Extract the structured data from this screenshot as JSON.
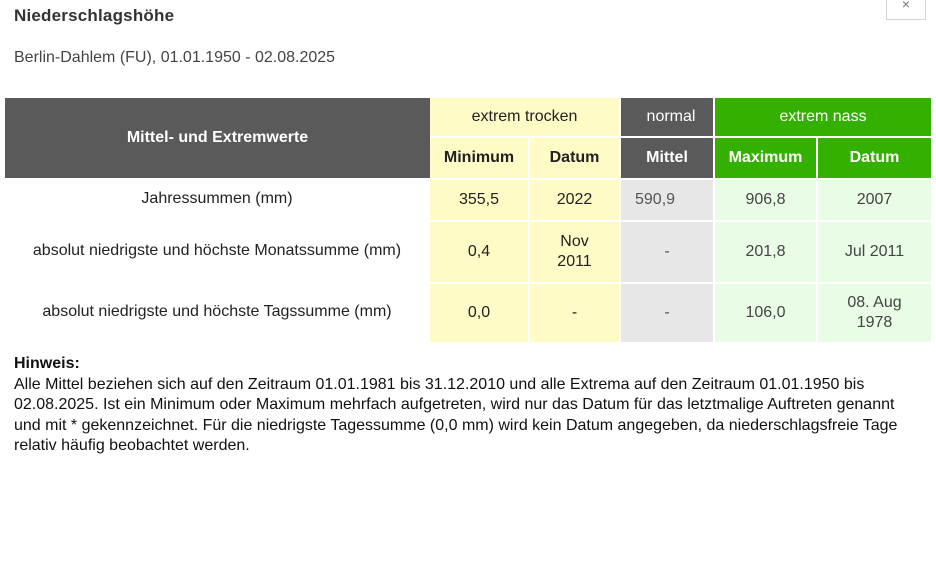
{
  "title": "Niederschlagshöhe",
  "subtitle": "Berlin-Dahlem (FU), 01.01.1950 - 02.08.2025",
  "close_glyph": "×",
  "table": {
    "corner_header": "Mittel- und Extremwerte",
    "groups": {
      "dry": "extrem trocken",
      "normal": "normal",
      "wet": "extrem nass"
    },
    "subheaders": {
      "dry_value": "Minimum",
      "dry_date": "Datum",
      "normal_value": "Mittel",
      "wet_value": "Maximum",
      "wet_date": "Datum"
    },
    "rows": [
      {
        "label": "Jahressummen (mm)",
        "min": "355,5",
        "min_date": "2022",
        "mean": "590,9",
        "max": "906,8",
        "max_date": "2007"
      },
      {
        "label": "absolut niedrigste und höchste Monatssumme (mm)",
        "min": "0,4",
        "min_date": "Nov 2011",
        "mean": "-",
        "max": "201,8",
        "max_date": "Jul 2011"
      },
      {
        "label": "absolut niedrigste und höchste Tagssumme (mm)",
        "min": "0,0",
        "min_date": "-",
        "mean": "-",
        "max": "106,0",
        "max_date": "08. Aug 1978"
      }
    ]
  },
  "note": {
    "title": "Hinweis:",
    "text": "Alle Mittel beziehen sich auf den Zeitraum 01.01.1981 bis 31.12.2010 und alle Extrema auf den Zeitraum 01.01.1950 bis 02.08.2025. Ist ein Minimum oder Maximum mehrfach aufgetreten, wird nur das Datum für das letztmalige Auftreten genannt und mit * gekennzeichnet. Für die niedrigste Tagessumme (0,0 mm) wird kein Datum angegeben, da niederschlagsfreie Tage relativ häufig beobachtet werden."
  },
  "colors": {
    "header_dark": "#5a5a5a",
    "dry_bg": "#fffbc7",
    "wet_header": "#33b000",
    "wet_bg": "#e9fde6",
    "normal_bg": "#e7e7e7"
  }
}
